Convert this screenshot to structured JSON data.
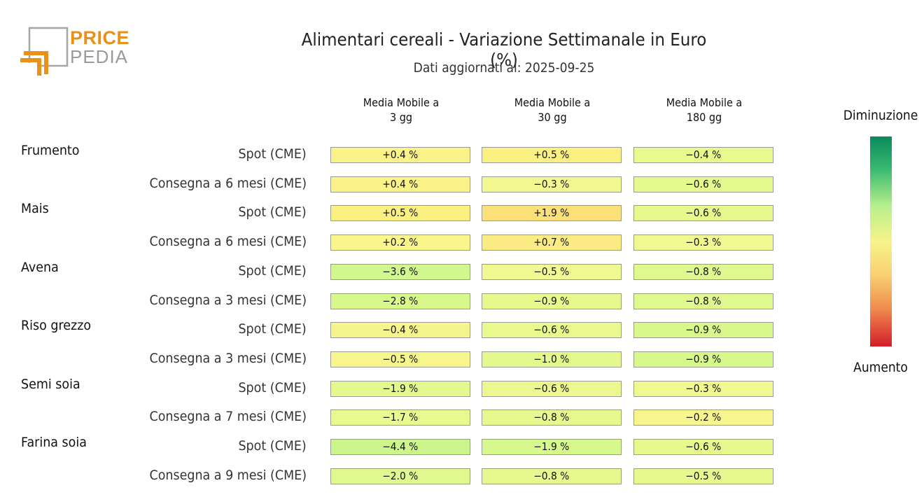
{
  "logo": {
    "line1": "PRICE",
    "line2": "PEDIA"
  },
  "title": "Alimentari cereali - Variazione Settimanale in Euro (%)",
  "subtitle": "Dati aggiornati al: 2025-09-25",
  "legend": {
    "top": "Diminuzione",
    "bottom": "Aumento"
  },
  "chart_data": {
    "type": "table",
    "title": "Alimentari cereali - Variazione Settimanale in Euro (%)",
    "subtitle": "Dati aggiornati al: 2025-09-25",
    "columns": [
      "Media Mobile a\n3 gg",
      "Media Mobile a\n30 gg",
      "Media Mobile a\n180 gg"
    ],
    "rows": [
      {
        "group": "Frumento",
        "label": "Spot (CME)",
        "values": [
          0.4,
          0.5,
          -0.4
        ],
        "text": [
          "+0.4 %",
          "+0.5 %",
          "-0.4 %"
        ]
      },
      {
        "group": "",
        "label": "Consegna a 6 mesi (CME)",
        "values": [
          0.4,
          -0.3,
          -0.6
        ],
        "text": [
          "+0.4 %",
          "-0.3 %",
          "-0.6 %"
        ]
      },
      {
        "group": "Mais",
        "label": "Spot (CME)",
        "values": [
          0.5,
          1.9,
          -0.6
        ],
        "text": [
          "+0.5 %",
          "+1.9 %",
          "-0.6 %"
        ]
      },
      {
        "group": "",
        "label": "Consegna a 6 mesi (CME)",
        "values": [
          0.2,
          0.7,
          -0.3
        ],
        "text": [
          "+0.2 %",
          "+0.7 %",
          "-0.3 %"
        ]
      },
      {
        "group": "Avena",
        "label": "Spot (CME)",
        "values": [
          -3.6,
          -0.5,
          -0.8
        ],
        "text": [
          "-3.6 %",
          "-0.5 %",
          "-0.8 %"
        ]
      },
      {
        "group": "",
        "label": "Consegna a 3 mesi (CME)",
        "values": [
          -2.8,
          -0.9,
          -0.8
        ],
        "text": [
          "-2.8 %",
          "-0.9 %",
          "-0.8 %"
        ]
      },
      {
        "group": "Riso grezzo",
        "label": "Spot (CME)",
        "values": [
          -0.4,
          -0.6,
          -0.9
        ],
        "text": [
          "-0.4 %",
          "-0.6 %",
          "-0.9 %"
        ]
      },
      {
        "group": "",
        "label": "Consegna a 3 mesi (CME)",
        "values": [
          -0.5,
          -1.0,
          -0.9
        ],
        "text": [
          "-0.5 %",
          "-1.0 %",
          "-0.9 %"
        ]
      },
      {
        "group": "Semi soia",
        "label": "Spot (CME)",
        "values": [
          -1.9,
          -0.6,
          -0.3
        ],
        "text": [
          "-1.9 %",
          "-0.6 %",
          "-0.3 %"
        ]
      },
      {
        "group": "",
        "label": "Consegna a 7 mesi (CME)",
        "values": [
          -1.7,
          -0.8,
          -0.2
        ],
        "text": [
          "-1.7 %",
          "-0.8 %",
          "-0.2 %"
        ]
      },
      {
        "group": "Farina soia",
        "label": "Spot (CME)",
        "values": [
          -4.4,
          -1.9,
          -0.6
        ],
        "text": [
          "-4.4 %",
          "-1.9 %",
          "-0.6 %"
        ]
      },
      {
        "group": "",
        "label": "Consegna a 9 mesi (CME)",
        "values": [
          -2.0,
          -0.8,
          -0.5
        ],
        "text": [
          "-2.0 %",
          "-0.8 %",
          "-0.5 %"
        ]
      }
    ],
    "colors": {
      "cells": [
        [
          "#fbf389",
          "#fbf183",
          "#e9f98e"
        ],
        [
          "#fbf389",
          "#f3f790",
          "#e5f98d"
        ],
        [
          "#fbf183",
          "#fbe07a",
          "#e5f98d"
        ],
        [
          "#fbf68c",
          "#fbeb83",
          "#eff98f"
        ],
        [
          "#d0f88c",
          "#f0f891",
          "#e0f98e"
        ],
        [
          "#d9f88c",
          "#e5f98d",
          "#e0f98e"
        ],
        [
          "#f4f68d",
          "#e9f98e",
          "#d9f88c"
        ],
        [
          "#f7f68d",
          "#e3f98d",
          "#d9f88c"
        ],
        [
          "#e3f98d",
          "#ecf88f",
          "#eff98f"
        ],
        [
          "#e8f98e",
          "#e7f98e",
          "#f7f68d"
        ],
        [
          "#ccf68b",
          "#d6f88c",
          "#e5f98d"
        ],
        [
          "#e0f98e",
          "#e7f98e",
          "#e7f98e"
        ]
      ],
      "legend_top": "#0b8a5c",
      "legend_bottom": "#d21e2a"
    }
  }
}
